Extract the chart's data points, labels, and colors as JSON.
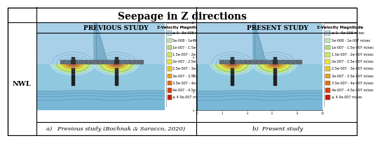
{
  "title": "Seepage in Z directions",
  "left_panel_title": "PREVIOUS STUDY",
  "right_panel_title": "PRESENT STUDY",
  "left_caption": "a)   Previous study (Bochnak & Saracco, 2020)",
  "right_caption": "b)  Present study",
  "nwl_label": "NWL",
  "legend_title": "Z-Velocity Magnitude",
  "legend_entries": [
    "≤ 0 - 5e-008 m/sec",
    "5e-008 - 1e-007 m/sec",
    "1e-007 - 1.5e-007 m/sec",
    "1.5e-007 - 2e-007 m/sec",
    "2e-007 - 2.5e-007 m/sec",
    "2.5e-007 - 3e-007 m/sec",
    "3e-007 - 3.5e-007 m/sec",
    "3.5e-007 - 4e-007 m/sec",
    "4e-007 - 4.5e-007 m/sec",
    "≥ 4.5e-007 m/sec"
  ],
  "legend_colors": [
    "#b8dff0",
    "#c0e8c0",
    "#b0dd80",
    "#d0e860",
    "#e8e840",
    "#e8c830",
    "#e8a020",
    "#e07010",
    "#d84010",
    "#c82000"
  ],
  "sky_color": "#c0dff0",
  "water_above_color": "#a8d0e8",
  "water_below_color": "#90c8e0",
  "seabed_color": "#7ab8d8",
  "dam_color": "#7ab0cc",
  "dam_edge_color": "#4a80a0",
  "platform_color": "#606870",
  "pile_color": "#202020",
  "bg_color": "#ffffff",
  "border_color": "#000000",
  "contour_line_color": "#60a0b8",
  "title_fontsize": 10,
  "panel_title_fontsize": 6.5,
  "caption_fontsize": 6,
  "nwl_fontsize": 7,
  "legend_title_fontsize": 4,
  "legend_entry_fontsize": 3.5
}
